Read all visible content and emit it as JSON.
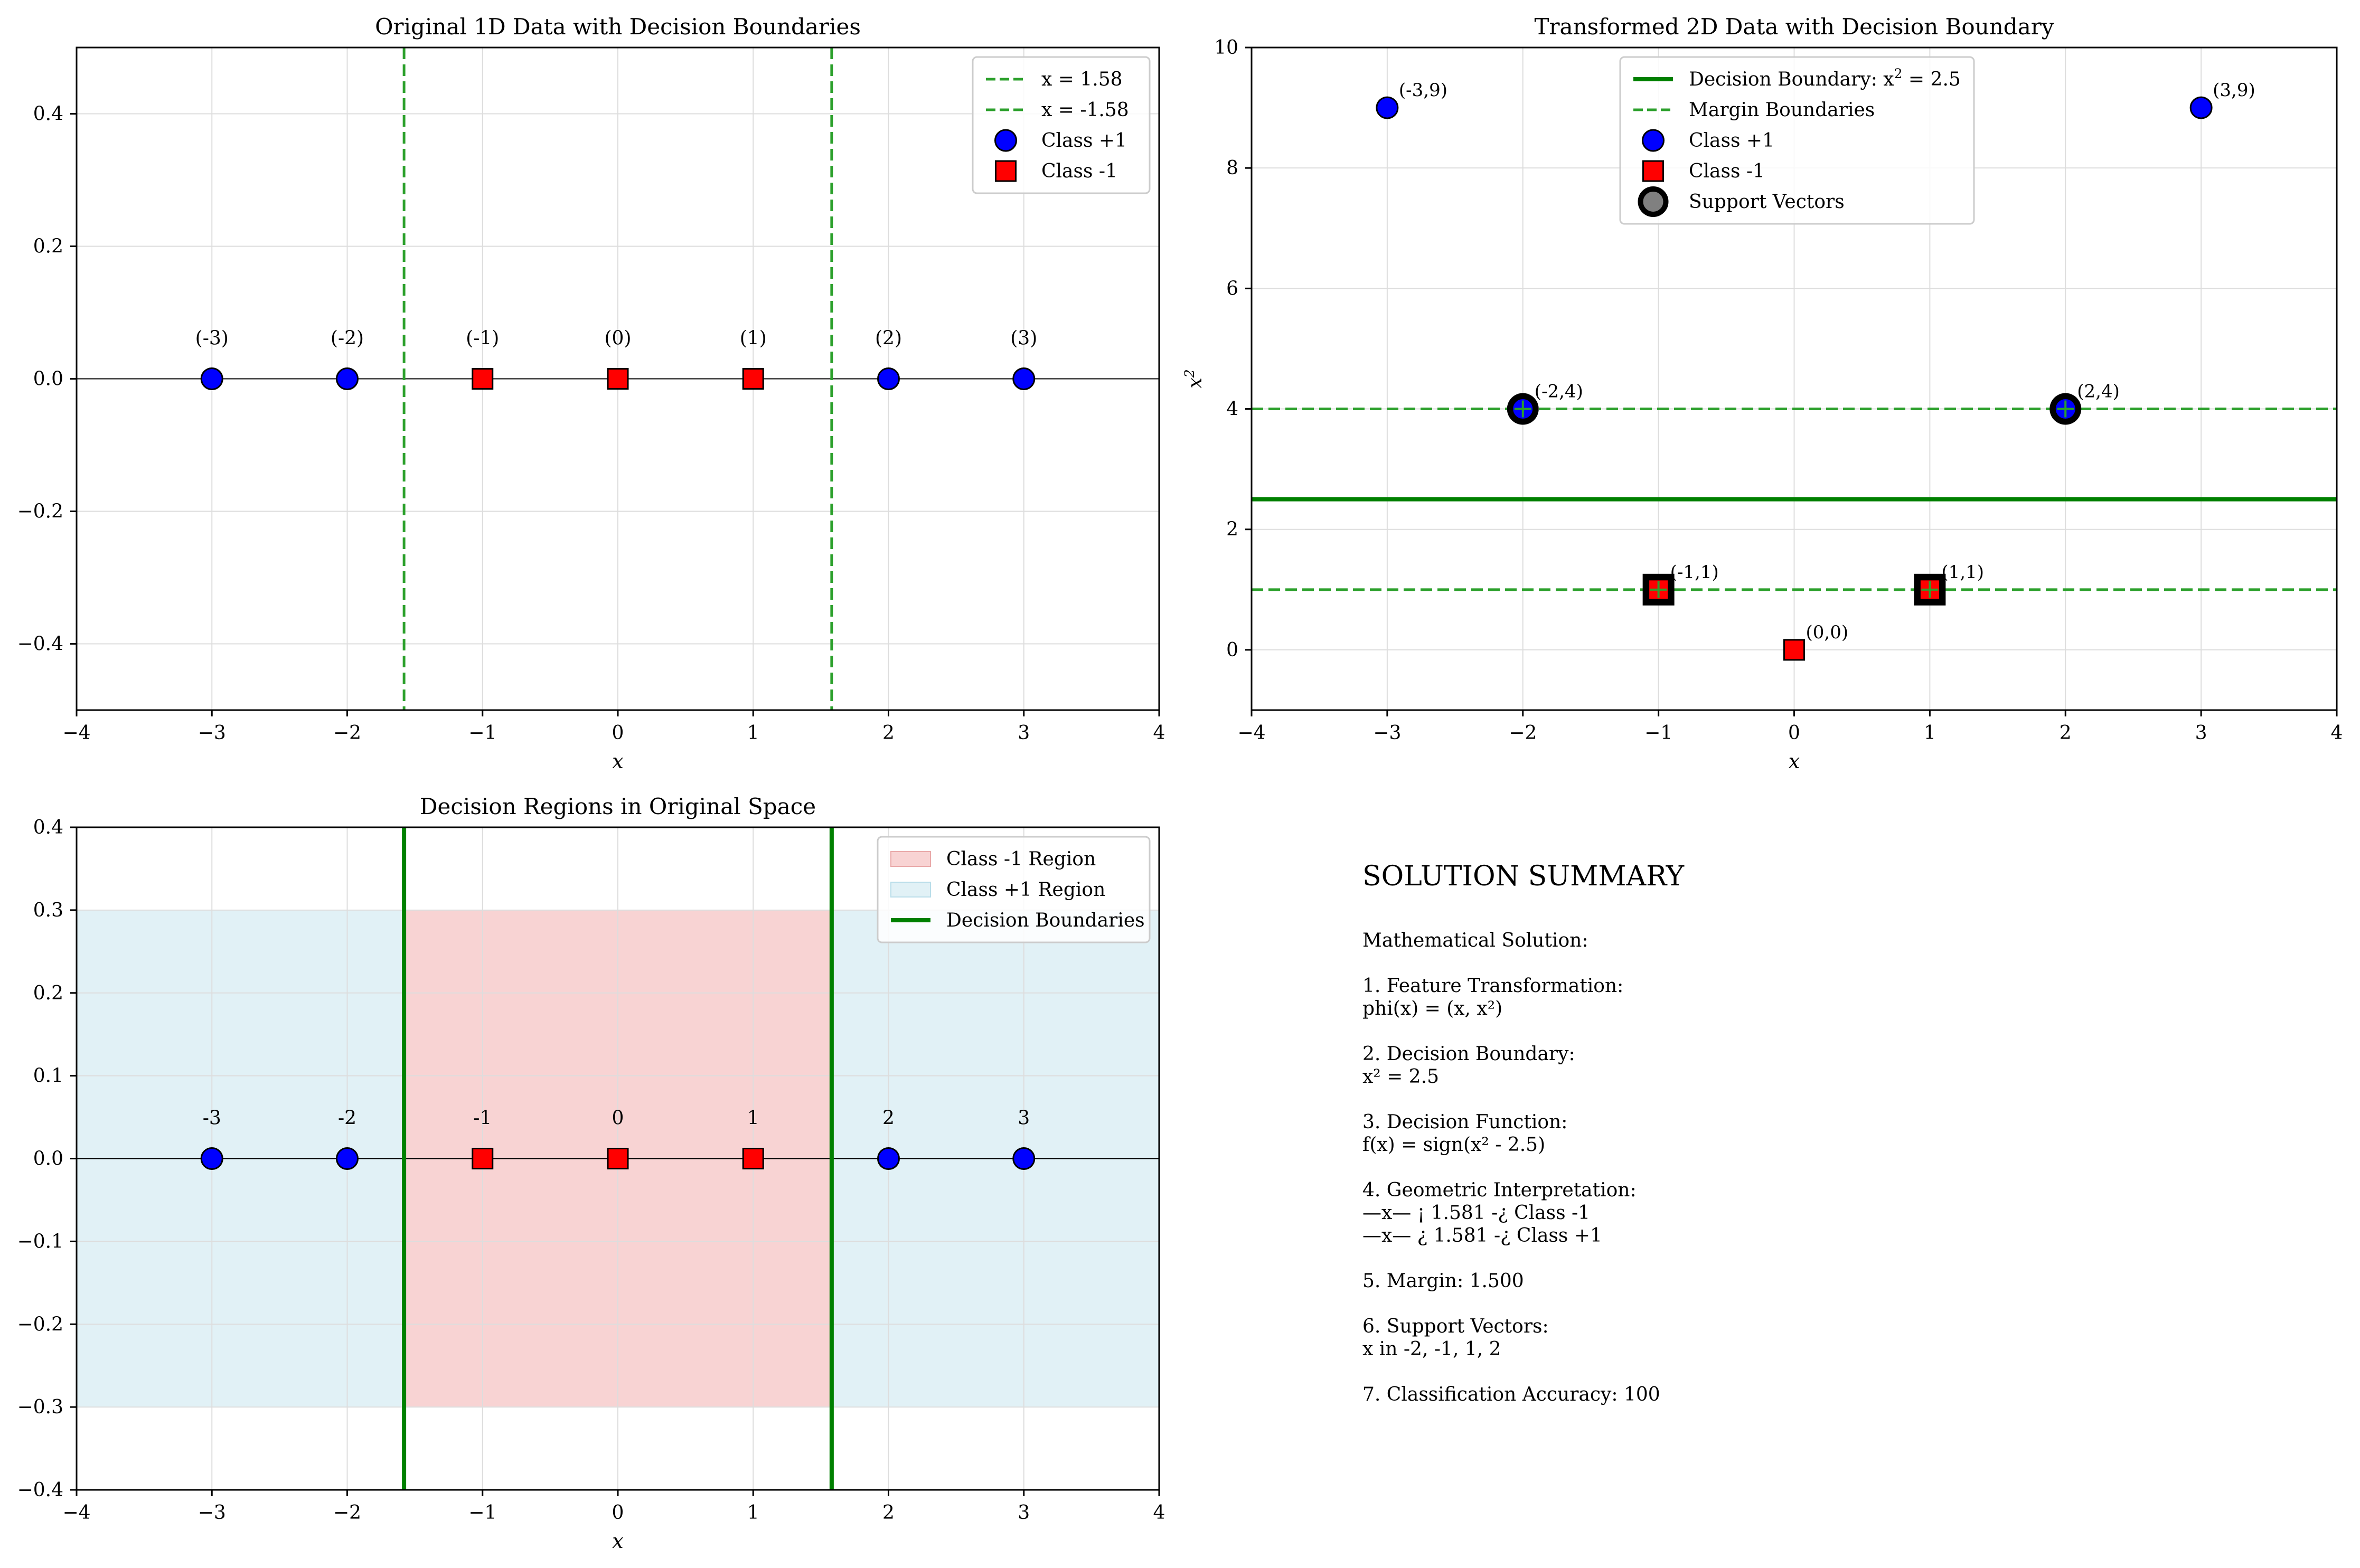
{
  "figure": {
    "colors": {
      "class_pos": "#0000ff",
      "class_neg": "#ff0000",
      "boundary": "#008000",
      "dashed": "#2ca02c",
      "grid": "#dddddd",
      "region_neg": "#f8d3d3",
      "region_pos": "#e1f1f6",
      "support": "#000000"
    }
  },
  "chart_data": [
    {
      "type": "scatter",
      "title": "Original 1D Data with Decision Boundaries",
      "xlabel": "x",
      "ylabel": "",
      "xlim": [
        -4,
        4
      ],
      "ylim": [
        -0.5,
        0.5
      ],
      "xticks": [
        -4,
        -3,
        -2,
        -1,
        0,
        1,
        2,
        3,
        4
      ],
      "yticks": [
        -0.4,
        -0.2,
        0.0,
        0.2,
        0.4
      ],
      "xtick_labels": [
        "−4",
        "−3",
        "−2",
        "−1",
        "0",
        "1",
        "2",
        "3",
        "4"
      ],
      "ytick_labels": [
        "−0.4",
        "−0.2",
        "0.0",
        "0.2",
        "0.4"
      ],
      "grid": true,
      "legend_position": "top-right",
      "legend": [
        {
          "kind": "dashed",
          "label": "x = 1.58"
        },
        {
          "kind": "dashed",
          "label": "x = -1.58"
        },
        {
          "kind": "circle",
          "label": "Class +1"
        },
        {
          "kind": "square",
          "label": "Class -1"
        }
      ],
      "vlines": [
        {
          "x": 1.58,
          "style": "dashed"
        },
        {
          "x": -1.58,
          "style": "dashed"
        }
      ],
      "hline": 0,
      "series": [
        {
          "name": "Class +1",
          "marker": "circle",
          "x": [
            -3,
            -2,
            2,
            3
          ],
          "y": [
            0,
            0,
            0,
            0
          ]
        },
        {
          "name": "Class -1",
          "marker": "square",
          "x": [
            -1,
            0,
            1
          ],
          "y": [
            0,
            0,
            0
          ]
        }
      ],
      "annotations": [
        {
          "text": "(-3)",
          "x": -3,
          "y": 0
        },
        {
          "text": "(-2)",
          "x": -2,
          "y": 0
        },
        {
          "text": "(-1)",
          "x": -1,
          "y": 0
        },
        {
          "text": "(0)",
          "x": 0,
          "y": 0
        },
        {
          "text": "(1)",
          "x": 1,
          "y": 0
        },
        {
          "text": "(2)",
          "x": 2,
          "y": 0
        },
        {
          "text": "(3)",
          "x": 3,
          "y": 0
        }
      ]
    },
    {
      "type": "scatter",
      "title": "Transformed 2D Data with Decision Boundary",
      "xlabel": "x",
      "ylabel": "x²",
      "xlim": [
        -4,
        4
      ],
      "ylim": [
        -1,
        10
      ],
      "xticks": [
        -4,
        -3,
        -2,
        -1,
        0,
        1,
        2,
        3,
        4
      ],
      "yticks": [
        0,
        2,
        4,
        6,
        8,
        10
      ],
      "xtick_labels": [
        "−4",
        "−3",
        "−2",
        "−1",
        "0",
        "1",
        "2",
        "3",
        "4"
      ],
      "ytick_labels": [
        "0",
        "2",
        "4",
        "6",
        "8",
        "10"
      ],
      "grid": true,
      "legend_position": "top-center",
      "legend": [
        {
          "kind": "solid",
          "label": "Decision Boundary: x² = 2.5"
        },
        {
          "kind": "dashed",
          "label": "Margin Boundaries"
        },
        {
          "kind": "circle",
          "label": "Class +1"
        },
        {
          "kind": "square",
          "label": "Class -1"
        },
        {
          "kind": "support",
          "label": "Support Vectors"
        }
      ],
      "hlines": [
        {
          "y": 2.5,
          "style": "solid"
        },
        {
          "y": 4,
          "style": "dashed"
        },
        {
          "y": 1,
          "style": "dashed"
        }
      ],
      "series": [
        {
          "name": "Class +1",
          "marker": "circle",
          "x": [
            -3,
            -2,
            2,
            3
          ],
          "y": [
            9,
            4,
            4,
            9
          ]
        },
        {
          "name": "Class -1",
          "marker": "square",
          "x": [
            -1,
            0,
            1
          ],
          "y": [
            1,
            0,
            1
          ]
        },
        {
          "name": "Support Vectors",
          "marker": "support",
          "x": [
            -2,
            -1,
            1,
            2
          ],
          "y": [
            4,
            1,
            1,
            4
          ],
          "shapes": [
            "circle",
            "square",
            "square",
            "circle"
          ]
        }
      ],
      "annotations": [
        {
          "text": "(-3,9)",
          "x": -3,
          "y": 9
        },
        {
          "text": "(-2,4)",
          "x": -2,
          "y": 4
        },
        {
          "text": "(-1,1)",
          "x": -1,
          "y": 1
        },
        {
          "text": "(0,0)",
          "x": 0,
          "y": 0
        },
        {
          "text": "(1,1)",
          "x": 1,
          "y": 1
        },
        {
          "text": "(2,4)",
          "x": 2,
          "y": 4
        },
        {
          "text": "(3,9)",
          "x": 3,
          "y": 9
        }
      ]
    },
    {
      "type": "scatter",
      "title": "Decision Regions in Original Space",
      "xlabel": "x",
      "ylabel": "",
      "xlim": [
        -4,
        4
      ],
      "ylim": [
        -0.4,
        0.4
      ],
      "xticks": [
        -4,
        -3,
        -2,
        -1,
        0,
        1,
        2,
        3,
        4
      ],
      "yticks": [
        -0.4,
        -0.3,
        -0.2,
        -0.1,
        0.0,
        0.1,
        0.2,
        0.3,
        0.4
      ],
      "xtick_labels": [
        "−4",
        "−3",
        "−2",
        "−1",
        "0",
        "1",
        "2",
        "3",
        "4"
      ],
      "ytick_labels": [
        "−0.4",
        "−0.3",
        "−0.2",
        "−0.1",
        "0.0",
        "0.1",
        "0.2",
        "0.3",
        "0.4"
      ],
      "grid": true,
      "legend_position": "top-right",
      "legend": [
        {
          "kind": "region-neg",
          "label": "Class -1 Region"
        },
        {
          "kind": "region-pos",
          "label": "Class +1 Region"
        },
        {
          "kind": "solid",
          "label": "Decision Boundaries"
        }
      ],
      "regions": [
        {
          "x0": -4,
          "x1": -1.58,
          "y0": -0.3,
          "y1": 0.3,
          "class": "pos"
        },
        {
          "x0": -1.58,
          "x1": 1.58,
          "y0": -0.3,
          "y1": 0.3,
          "class": "neg"
        },
        {
          "x0": 1.58,
          "x1": 4,
          "y0": -0.3,
          "y1": 0.3,
          "class": "pos"
        }
      ],
      "vlines": [
        {
          "x": -1.58,
          "style": "solid"
        },
        {
          "x": 1.58,
          "style": "solid"
        }
      ],
      "hline": 0,
      "series": [
        {
          "name": "Class +1",
          "marker": "circle",
          "x": [
            -3,
            -2,
            2,
            3
          ],
          "y": [
            0,
            0,
            0,
            0
          ]
        },
        {
          "name": "Class -1",
          "marker": "square",
          "x": [
            -1,
            0,
            1
          ],
          "y": [
            0,
            0,
            0
          ]
        }
      ],
      "annotations": [
        {
          "text": "-3",
          "x": -3,
          "y": 0
        },
        {
          "text": "-2",
          "x": -2,
          "y": 0
        },
        {
          "text": "-1",
          "x": -1,
          "y": 0
        },
        {
          "text": "0",
          "x": 0,
          "y": 0
        },
        {
          "text": "1",
          "x": 1,
          "y": 0
        },
        {
          "text": "2",
          "x": 2,
          "y": 0
        },
        {
          "text": "3",
          "x": 3,
          "y": 0
        }
      ]
    }
  ],
  "summary": {
    "title": "SOLUTION SUMMARY",
    "lines": [
      "Mathematical Solution:",
      "",
      "1. Feature Transformation:",
      "phi(x) = (x, x²)",
      "",
      "2. Decision Boundary:",
      "x² = 2.5",
      "",
      "3. Decision Function:",
      "f(x) = sign(x² - 2.5)",
      "",
      "4. Geometric Interpretation:",
      "—x— ¡ 1.581 -¿ Class -1",
      "—x— ¿ 1.581 -¿ Class +1",
      "",
      "5. Margin: 1.500",
      "",
      "6. Support Vectors:",
      "x in -2, -1, 1, 2",
      "",
      "7. Classification Accuracy: 100"
    ]
  }
}
